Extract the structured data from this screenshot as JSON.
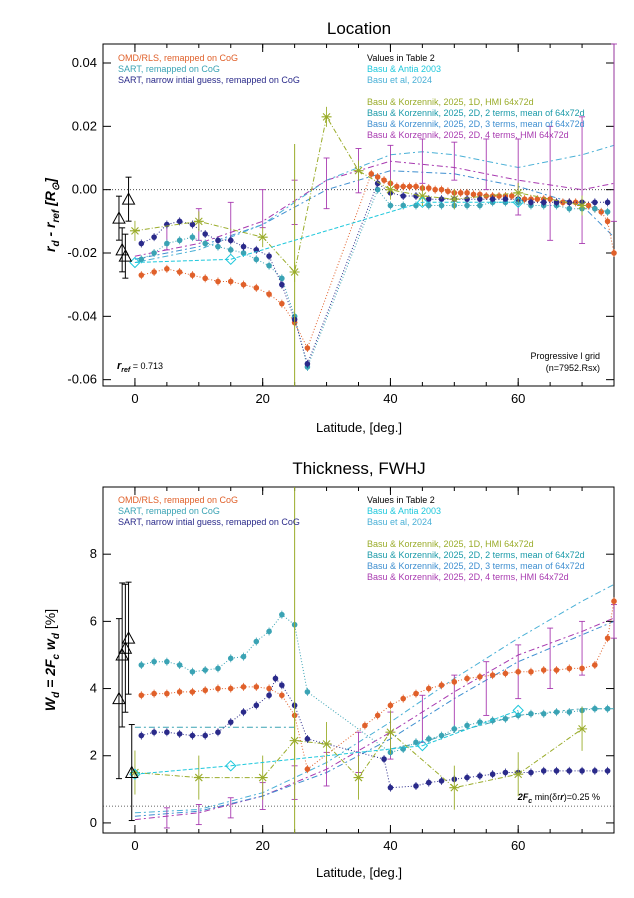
{
  "colors": {
    "olive": "#9aac2a",
    "orange": "#e0602a",
    "teal": "#3aa3b4",
    "navy": "#2a2a8a",
    "cyan": "#1ec8dc",
    "purple": "#a83ab0",
    "skyblue": "#4ab0d6",
    "lightblue": "#3f8fd0",
    "black": "#000000"
  },
  "chart_data": [
    {
      "type": "scatter",
      "title": "Location",
      "xlabel": "Latitude, [deg.]",
      "ylabel": "r_d - r_ref [R_sun]",
      "xlim": [
        -5,
        75
      ],
      "ylim": [
        -0.062,
        0.046
      ],
      "xticks": [
        0,
        20,
        40,
        60
      ],
      "xtick_labels": [
        "0",
        "20",
        "40",
        "60"
      ],
      "yticks": [
        -0.06,
        -0.04,
        -0.02,
        0.0,
        0.02,
        0.04
      ],
      "ytick_labels": [
        "-0.06",
        "-0.04",
        "-0.02",
        "0.00",
        "0.02",
        "0.04"
      ],
      "ylabel_parts": {
        "main": "r",
        "sub1": "d",
        "mid": " - r",
        "sub2": "ref",
        "unit": "[R",
        "unitsub": "⊙",
        "close": "]"
      },
      "legend_left": [
        "OMD/RLS, remapped on CoG",
        "SART, remapped on CoG",
        "SART, narrow intial guess, remapped on CoG"
      ],
      "legend_right_title": "Values in Table 2",
      "legend_right": [
        "Basu & Antia 2003",
        "Basu et al,  2024"
      ],
      "legend_right2": [
        "Basu & Korzennik, 2025, 1D, HMI 64x72d",
        "Basu & Korzennik, 2025, 2D, 2 terms, mean of 64x72d",
        "Basu & Korzennik, 2025, 2D, 3 terms, mean of 64x72d",
        "Basu & Korzennik, 2025, 2D, 4 terms, HMI 64x72d"
      ],
      "annotation_left": {
        "r": "r",
        "sub": "ref",
        "val": " = 0.713"
      },
      "annotation_right": [
        "Progressive l grid",
        "(n=7952.Rsx)"
      ],
      "reference_line_y": 0.0,
      "series": [
        {
          "name": "OMD/RLS, remapped on CoG",
          "color": "orange",
          "x": [
            1,
            3,
            5,
            7,
            9,
            11,
            13,
            15,
            17,
            19,
            21,
            23,
            25,
            27,
            37,
            38,
            39,
            40,
            41,
            42,
            43,
            44,
            45,
            46,
            47,
            48,
            49,
            50,
            51,
            52,
            53,
            54,
            55,
            56,
            57,
            58,
            59,
            60,
            61,
            62,
            63,
            64,
            65,
            66,
            67,
            68,
            69,
            70,
            71,
            72,
            73,
            74,
            75
          ],
          "y": [
            -0.027,
            -0.026,
            -0.025,
            -0.026,
            -0.027,
            -0.028,
            -0.029,
            -0.029,
            -0.03,
            -0.031,
            -0.033,
            -0.036,
            -0.042,
            -0.05,
            0.005,
            0.004,
            0.003,
            0.002,
            0.001,
            0.001,
            0.001,
            0.001,
            0.0005,
            0.0005,
            0.0,
            0.0,
            -0.0005,
            -0.001,
            -0.001,
            -0.001,
            -0.0015,
            -0.0015,
            -0.002,
            -0.002,
            -0.002,
            -0.002,
            -0.002,
            -0.003,
            -0.003,
            -0.003,
            -0.003,
            -0.003,
            -0.003,
            -0.004,
            -0.004,
            -0.004,
            -0.004,
            -0.004,
            -0.005,
            -0.006,
            -0.007,
            -0.01,
            -0.02
          ]
        },
        {
          "name": "SART, remapped on CoG",
          "color": "teal",
          "x": [
            1,
            3,
            5,
            7,
            9,
            11,
            13,
            15,
            17,
            19,
            21,
            23,
            25,
            27,
            38,
            40,
            42,
            44,
            46,
            48,
            50,
            52,
            54,
            56,
            58,
            60,
            62,
            64,
            66,
            68,
            70,
            72,
            74
          ],
          "y": [
            -0.022,
            -0.02,
            -0.017,
            -0.016,
            -0.015,
            -0.017,
            -0.018,
            -0.019,
            -0.02,
            -0.022,
            -0.024,
            -0.028,
            -0.04,
            -0.056,
            0.0,
            -0.005,
            -0.005,
            -0.005,
            -0.005,
            -0.005,
            -0.005,
            -0.005,
            -0.005,
            -0.004,
            -0.004,
            -0.004,
            -0.005,
            -0.005,
            -0.005,
            -0.006,
            -0.006,
            -0.006,
            -0.007
          ]
        },
        {
          "name": "SART, narrow intial guess, remapped on CoG",
          "color": "navy",
          "x": [
            1,
            3,
            5,
            7,
            9,
            11,
            13,
            15,
            17,
            19,
            21,
            23,
            25,
            27,
            38,
            40,
            42,
            44,
            46,
            48,
            50,
            52,
            54,
            56,
            58,
            60,
            62,
            64,
            66,
            68,
            70,
            72,
            74
          ],
          "y": [
            -0.017,
            -0.015,
            -0.011,
            -0.01,
            -0.011,
            -0.014,
            -0.016,
            -0.016,
            -0.018,
            -0.019,
            -0.021,
            -0.03,
            -0.041,
            -0.055,
            0.002,
            -0.001,
            -0.002,
            -0.002,
            -0.003,
            -0.003,
            -0.003,
            -0.003,
            -0.003,
            -0.003,
            -0.003,
            -0.003,
            -0.004,
            -0.004,
            -0.004,
            -0.004,
            -0.004,
            -0.004,
            -0.004
          ]
        },
        {
          "name": "Basu & Korzennik, 2025, 1D, HMI 64x72d",
          "color": "olive",
          "x": [
            0,
            10,
            20,
            25,
            30,
            35,
            40,
            45,
            50,
            60,
            70
          ],
          "y": [
            -0.013,
            -0.01,
            -0.015,
            -0.026,
            0.023,
            0.006,
            0.0,
            -0.002,
            -0.003,
            -0.001,
            -0.005
          ]
        },
        {
          "name": "Basu & Antia 2003",
          "color": "cyan",
          "x": [
            0,
            15,
            45,
            60
          ],
          "y": [
            -0.023,
            -0.022,
            -0.004,
            -0.004
          ]
        },
        {
          "name": "Triangles",
          "color": "black",
          "x": [
            -2.5,
            -2,
            -1.5,
            -1
          ],
          "y": [
            -0.009,
            -0.019,
            -0.021,
            -0.003
          ]
        }
      ]
    },
    {
      "type": "scatter",
      "title": "Thickness, FWHJ",
      "xlabel": "Latitude, [deg.]",
      "ylabel": "W_d = 2F_c w_d [%]",
      "xlim": [
        -5,
        75
      ],
      "ylim": [
        -0.3,
        10
      ],
      "xticks": [
        0,
        20,
        40,
        60
      ],
      "xtick_labels": [
        "0",
        "20",
        "40",
        "60"
      ],
      "yticks": [
        0,
        2,
        4,
        6,
        8
      ],
      "ytick_labels": [
        "0",
        "2",
        "4",
        "6",
        "8"
      ],
      "ylabel_parts": {
        "main": "W",
        "sub1": "d",
        "mid": "  =  2F",
        "sub2": "c",
        "tail": " w",
        "sub3": "d",
        "unit": " [%]"
      },
      "legend_left": [
        "OMD/RLS, remapped on CoG",
        "SART, remapped on CoG",
        "SART, narrow intial guess, remapped on CoG"
      ],
      "legend_right_title": "Values in Table 2",
      "legend_right": [
        "Basu & Antia 2003",
        "Basu et al,  2024"
      ],
      "legend_right2": [
        "Basu & Korzennik, 2025, 1D, HMI 64x72d",
        "Basu & Korzennik, 2025, 2D, 2 terms, mean of 64x72d",
        "Basu & Korzennik, 2025, 2D, 3 terms, mean of 64x72d",
        "Basu & Korzennik, 2025, 2D, 4 terms, HMI 64x72d"
      ],
      "annotation_right": {
        "a": "2F",
        "sub": "c",
        "b": " min(δr",
        "c": ")=0.25 %"
      },
      "reference_line_y": 0.5,
      "series": [
        {
          "name": "OMD/RLS, remapped on CoG",
          "color": "orange",
          "x": [
            1,
            3,
            5,
            7,
            9,
            11,
            13,
            15,
            17,
            19,
            21,
            23,
            25,
            27,
            36,
            38,
            40,
            42,
            44,
            46,
            48,
            50,
            52,
            54,
            56,
            58,
            60,
            62,
            64,
            66,
            68,
            70,
            72,
            74,
            75
          ],
          "y": [
            3.8,
            3.85,
            3.85,
            3.9,
            3.9,
            3.95,
            4.0,
            4.0,
            4.05,
            4.05,
            4.0,
            3.8,
            3.2,
            1.6,
            2.9,
            3.2,
            3.5,
            3.7,
            3.85,
            4.0,
            4.1,
            4.2,
            4.3,
            4.35,
            4.4,
            4.45,
            4.5,
            4.5,
            4.55,
            4.55,
            4.6,
            4.6,
            4.7,
            5.5,
            6.6
          ]
        },
        {
          "name": "SART, remapped on CoG",
          "color": "teal",
          "x": [
            1,
            3,
            5,
            7,
            9,
            11,
            13,
            15,
            17,
            19,
            21,
            23,
            25,
            27,
            40,
            42,
            44,
            46,
            48,
            50,
            52,
            54,
            56,
            58,
            60,
            62,
            64,
            66,
            68,
            70,
            72,
            74
          ],
          "y": [
            4.7,
            4.8,
            4.8,
            4.7,
            4.5,
            4.55,
            4.6,
            4.9,
            4.95,
            5.4,
            5.7,
            6.2,
            5.9,
            3.9,
            2.1,
            2.2,
            2.4,
            2.5,
            2.6,
            2.8,
            2.9,
            3.0,
            3.05,
            3.1,
            3.2,
            3.25,
            3.25,
            3.3,
            3.3,
            3.35,
            3.4,
            3.4
          ]
        },
        {
          "name": "SART, narrow intial guess, remapped on CoG",
          "color": "navy",
          "x": [
            1,
            3,
            5,
            7,
            9,
            11,
            13,
            15,
            17,
            19,
            21,
            22,
            23,
            25,
            27,
            39,
            40,
            44,
            46,
            48,
            50,
            52,
            54,
            56,
            58,
            60,
            62,
            64,
            66,
            68,
            70,
            72,
            74
          ],
          "y": [
            2.6,
            2.7,
            2.7,
            2.65,
            2.6,
            2.6,
            2.7,
            3.0,
            3.3,
            3.5,
            3.8,
            4.3,
            4.1,
            3.5,
            2.5,
            1.9,
            1.05,
            1.1,
            1.2,
            1.25,
            1.3,
            1.35,
            1.4,
            1.45,
            1.5,
            1.5,
            1.5,
            1.55,
            1.55,
            1.55,
            1.55,
            1.55,
            1.55
          ]
        },
        {
          "name": "Basu & Korzennik, 2025, 1D, HMI 64x72d",
          "color": "olive",
          "x": [
            0,
            10,
            20,
            25,
            30,
            35,
            40,
            50,
            60,
            70
          ],
          "y": [
            1.5,
            1.35,
            1.35,
            2.45,
            2.35,
            1.35,
            2.7,
            1.05,
            1.45,
            2.8
          ]
        },
        {
          "name": "Basu & Antia 2003",
          "color": "cyan",
          "x": [
            0,
            15,
            45,
            60
          ],
          "y": [
            1.45,
            1.7,
            2.3,
            3.35
          ]
        },
        {
          "name": "Triangles",
          "color": "black",
          "x": [
            -2.5,
            -2,
            -1.5,
            -1,
            -0.5
          ],
          "y": [
            3.7,
            5.0,
            5.2,
            5.5,
            1.5
          ]
        }
      ]
    }
  ]
}
